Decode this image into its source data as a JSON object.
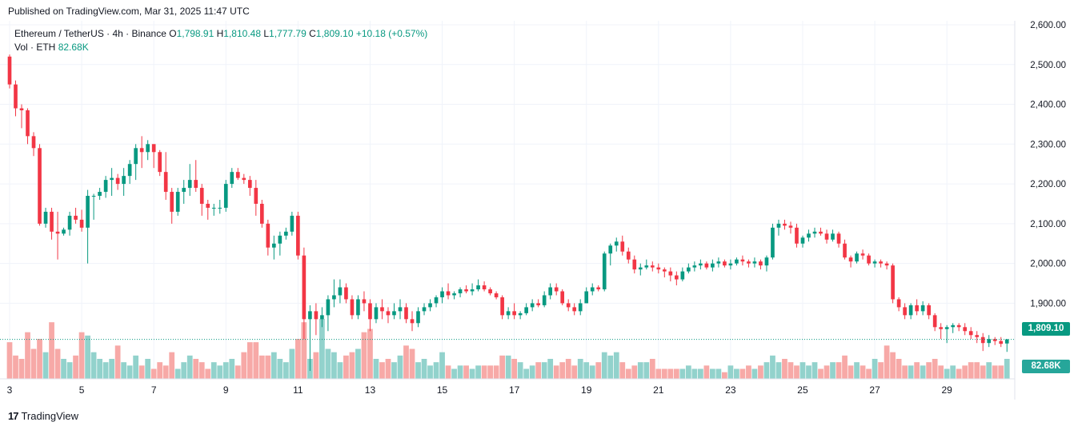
{
  "header": {
    "published": "Published on TradingView.com, Mar 31, 2025 11:47 UTC"
  },
  "legend": {
    "symbol": "Ethereum / TetherUS · 4h · Binance",
    "open_key": "O",
    "open": "1,798.91",
    "high_key": "H",
    "high": "1,810.48",
    "low_key": "L",
    "low": "1,777.79",
    "close_key": "C",
    "close": "1,809.10",
    "change": "+10.18 (+0.57%)",
    "vol_label": "Vol · ETH",
    "vol_value": "82.68K"
  },
  "tags": {
    "last_price": "1,809.10",
    "volume": "82.68K"
  },
  "footer": {
    "brand": "TradingView",
    "mark": "17"
  },
  "colors": {
    "up": "#089981",
    "down": "#f23645",
    "vol_up": "#92d2cc",
    "vol_down": "#f7a9a7",
    "grid": "#f0f3fa"
  },
  "chart_data": {
    "type": "candlestick",
    "title": "Ethereum / TetherUS · 4h · Binance",
    "y_ticks": [
      "2,600.00",
      "2,500.00",
      "2,400.00",
      "2,300.00",
      "2,200.00",
      "2,100.00",
      "2,000.00",
      "1,900.00"
    ],
    "ylim": [
      1710,
      2610
    ],
    "x_ticks": [
      {
        "label": "3",
        "index": 0
      },
      {
        "label": "5",
        "index": 12
      },
      {
        "label": "7",
        "index": 24
      },
      {
        "label": "9",
        "index": 36
      },
      {
        "label": "11",
        "index": 48
      },
      {
        "label": "13",
        "index": 60
      },
      {
        "label": "15",
        "index": 72
      },
      {
        "label": "17",
        "index": 84
      },
      {
        "label": "19",
        "index": 96
      },
      {
        "label": "21",
        "index": 108
      },
      {
        "label": "23",
        "index": 120
      },
      {
        "label": "25",
        "index": 132
      },
      {
        "label": "27",
        "index": 144
      },
      {
        "label": "29",
        "index": 156
      }
    ],
    "last_price": 1809.1,
    "candles": [
      [
        2520,
        2525,
        2440,
        2450,
        55
      ],
      [
        2450,
        2460,
        2370,
        2390,
        35
      ],
      [
        2390,
        2400,
        2340,
        2385,
        30
      ],
      [
        2385,
        2390,
        2300,
        2320,
        70
      ],
      [
        2320,
        2330,
        2270,
        2290,
        45
      ],
      [
        2290,
        2300,
        2095,
        2100,
        60
      ],
      [
        2100,
        2140,
        2090,
        2130,
        40
      ],
      [
        2130,
        2140,
        2060,
        2080,
        85
      ],
      [
        2080,
        2130,
        2010,
        2075,
        45
      ],
      [
        2075,
        2090,
        2070,
        2085,
        30
      ],
      [
        2085,
        2130,
        2070,
        2120,
        25
      ],
      [
        2120,
        2140,
        2100,
        2110,
        35
      ],
      [
        2110,
        2135,
        2080,
        2090,
        70
      ],
      [
        2090,
        2185,
        2000,
        2170,
        65
      ],
      [
        2170,
        2175,
        2110,
        2170,
        40
      ],
      [
        2170,
        2190,
        2160,
        2180,
        30
      ],
      [
        2180,
        2220,
        2165,
        2210,
        25
      ],
      [
        2210,
        2240,
        2170,
        2215,
        30
      ],
      [
        2215,
        2225,
        2185,
        2200,
        50
      ],
      [
        2200,
        2240,
        2170,
        2220,
        25
      ],
      [
        2220,
        2260,
        2200,
        2250,
        20
      ],
      [
        2250,
        2300,
        2210,
        2290,
        35
      ],
      [
        2290,
        2320,
        2240,
        2280,
        20
      ],
      [
        2280,
        2310,
        2260,
        2300,
        30
      ],
      [
        2300,
        2300,
        2240,
        2280,
        15
      ],
      [
        2280,
        2285,
        2220,
        2230,
        25
      ],
      [
        2230,
        2280,
        2160,
        2180,
        20
      ],
      [
        2180,
        2190,
        2100,
        2130,
        40
      ],
      [
        2130,
        2190,
        2120,
        2180,
        15
      ],
      [
        2180,
        2210,
        2150,
        2190,
        25
      ],
      [
        2190,
        2250,
        2170,
        2210,
        35
      ],
      [
        2210,
        2260,
        2180,
        2190,
        30
      ],
      [
        2190,
        2200,
        2120,
        2150,
        25
      ],
      [
        2150,
        2160,
        2110,
        2140,
        15
      ],
      [
        2140,
        2150,
        2120,
        2140,
        25
      ],
      [
        2140,
        2160,
        2125,
        2140,
        20
      ],
      [
        2140,
        2210,
        2130,
        2200,
        25
      ],
      [
        2200,
        2240,
        2190,
        2230,
        30
      ],
      [
        2230,
        2240,
        2210,
        2215,
        20
      ],
      [
        2215,
        2225,
        2200,
        2210,
        40
      ],
      [
        2210,
        2220,
        2170,
        2190,
        55
      ],
      [
        2190,
        2210,
        2120,
        2150,
        55
      ],
      [
        2150,
        2160,
        2090,
        2100,
        35
      ],
      [
        2100,
        2110,
        2020,
        2040,
        35
      ],
      [
        2040,
        2070,
        2010,
        2050,
        40
      ],
      [
        2050,
        2080,
        2020,
        2070,
        30
      ],
      [
        2070,
        2090,
        2060,
        2080,
        25
      ],
      [
        2080,
        2130,
        2070,
        2120,
        45
      ],
      [
        2120,
        2130,
        2010,
        2020,
        60
      ],
      [
        2020,
        2040,
        1810,
        1860,
        85
      ],
      [
        1860,
        1895,
        1730,
        1880,
        30
      ],
      [
        1880,
        1900,
        1820,
        1860,
        40
      ],
      [
        1860,
        1890,
        1840,
        1870,
        90
      ],
      [
        1870,
        1920,
        1830,
        1910,
        45
      ],
      [
        1910,
        1960,
        1890,
        1920,
        40
      ],
      [
        1920,
        1960,
        1900,
        1940,
        25
      ],
      [
        1940,
        1950,
        1900,
        1910,
        35
      ],
      [
        1910,
        1920,
        1860,
        1870,
        40
      ],
      [
        1870,
        1920,
        1860,
        1910,
        45
      ],
      [
        1910,
        1930,
        1880,
        1900,
        70
      ],
      [
        1900,
        1910,
        1830,
        1860,
        75
      ],
      [
        1860,
        1900,
        1850,
        1890,
        30
      ],
      [
        1890,
        1910,
        1860,
        1880,
        25
      ],
      [
        1880,
        1890,
        1850,
        1870,
        30
      ],
      [
        1870,
        1900,
        1860,
        1880,
        25
      ],
      [
        1880,
        1910,
        1860,
        1890,
        35
      ],
      [
        1890,
        1900,
        1850,
        1860,
        50
      ],
      [
        1860,
        1880,
        1830,
        1850,
        45
      ],
      [
        1850,
        1890,
        1840,
        1880,
        25
      ],
      [
        1880,
        1900,
        1870,
        1890,
        30
      ],
      [
        1890,
        1910,
        1880,
        1900,
        20
      ],
      [
        1900,
        1920,
        1890,
        1915,
        25
      ],
      [
        1915,
        1940,
        1900,
        1930,
        40
      ],
      [
        1930,
        1950,
        1910,
        1920,
        20
      ],
      [
        1920,
        1930,
        1910,
        1925,
        15
      ],
      [
        1925,
        1940,
        1915,
        1935,
        20
      ],
      [
        1935,
        1945,
        1925,
        1930,
        20
      ],
      [
        1930,
        1950,
        1920,
        1935,
        15
      ],
      [
        1935,
        1960,
        1930,
        1945,
        20
      ],
      [
        1945,
        1955,
        1930,
        1935,
        20
      ],
      [
        1935,
        1940,
        1920,
        1925,
        20
      ],
      [
        1925,
        1930,
        1910,
        1915,
        20
      ],
      [
        1915,
        1920,
        1860,
        1870,
        35
      ],
      [
        1870,
        1890,
        1860,
        1880,
        35
      ],
      [
        1880,
        1900,
        1860,
        1870,
        30
      ],
      [
        1870,
        1880,
        1860,
        1875,
        25
      ],
      [
        1875,
        1900,
        1870,
        1890,
        15
      ],
      [
        1890,
        1910,
        1880,
        1900,
        20
      ],
      [
        1900,
        1910,
        1890,
        1895,
        25
      ],
      [
        1895,
        1930,
        1890,
        1920,
        25
      ],
      [
        1920,
        1950,
        1910,
        1940,
        30
      ],
      [
        1940,
        1950,
        1920,
        1930,
        20
      ],
      [
        1930,
        1935,
        1895,
        1900,
        25
      ],
      [
        1900,
        1910,
        1880,
        1890,
        30
      ],
      [
        1890,
        1900,
        1870,
        1880,
        20
      ],
      [
        1880,
        1910,
        1870,
        1900,
        30
      ],
      [
        1900,
        1940,
        1900,
        1930,
        25
      ],
      [
        1930,
        1950,
        1920,
        1940,
        20
      ],
      [
        1940,
        1945,
        1930,
        1935,
        25
      ],
      [
        1935,
        2030,
        1930,
        2025,
        40
      ],
      [
        2025,
        2050,
        1995,
        2045,
        35
      ],
      [
        2045,
        2065,
        2030,
        2055,
        40
      ],
      [
        2055,
        2070,
        2020,
        2030,
        25
      ],
      [
        2030,
        2040,
        2000,
        2010,
        15
      ],
      [
        2010,
        2020,
        1975,
        1985,
        20
      ],
      [
        1985,
        2000,
        1970,
        1990,
        25
      ],
      [
        1990,
        2010,
        1985,
        1995,
        25
      ],
      [
        1995,
        2005,
        1980,
        1990,
        30
      ],
      [
        1990,
        2000,
        1975,
        1985,
        15
      ],
      [
        1985,
        1990,
        1965,
        1980,
        15
      ],
      [
        1980,
        1990,
        1955,
        1970,
        15
      ],
      [
        1970,
        1980,
        1945,
        1960,
        15
      ],
      [
        1960,
        1990,
        1955,
        1980,
        15
      ],
      [
        1980,
        2000,
        1975,
        1990,
        20
      ],
      [
        1990,
        2005,
        1980,
        1995,
        15
      ],
      [
        1995,
        2010,
        1985,
        2000,
        15
      ],
      [
        2000,
        2005,
        1985,
        1990,
        20
      ],
      [
        1990,
        2010,
        1980,
        2000,
        15
      ],
      [
        2000,
        2015,
        1990,
        2005,
        15
      ],
      [
        2005,
        2010,
        1990,
        1995,
        10
      ],
      [
        1995,
        2010,
        1985,
        2000,
        20
      ],
      [
        2000,
        2015,
        1995,
        2010,
        15
      ],
      [
        2010,
        2020,
        1995,
        2005,
        15
      ],
      [
        2005,
        2010,
        1990,
        2000,
        20
      ],
      [
        2000,
        2015,
        1990,
        2005,
        15
      ],
      [
        2005,
        2010,
        1985,
        1995,
        20
      ],
      [
        1995,
        2020,
        1980,
        2015,
        25
      ],
      [
        2015,
        2100,
        2010,
        2090,
        35
      ],
      [
        2090,
        2110,
        2070,
        2100,
        25
      ],
      [
        2100,
        2110,
        2085,
        2095,
        30
      ],
      [
        2095,
        2105,
        2075,
        2090,
        25
      ],
      [
        2090,
        2100,
        2040,
        2050,
        20
      ],
      [
        2050,
        2070,
        2040,
        2065,
        25
      ],
      [
        2065,
        2085,
        2055,
        2075,
        20
      ],
      [
        2075,
        2090,
        2065,
        2080,
        25
      ],
      [
        2080,
        2090,
        2070,
        2075,
        15
      ],
      [
        2075,
        2085,
        2050,
        2060,
        20
      ],
      [
        2060,
        2085,
        2055,
        2075,
        25
      ],
      [
        2075,
        2080,
        2040,
        2050,
        25
      ],
      [
        2050,
        2060,
        2010,
        2015,
        35
      ],
      [
        2015,
        2020,
        1990,
        2005,
        20
      ],
      [
        2005,
        2030,
        2000,
        2025,
        25
      ],
      [
        2025,
        2035,
        2010,
        2020,
        20
      ],
      [
        2020,
        2025,
        1995,
        2000,
        15
      ],
      [
        2000,
        2010,
        1990,
        2005,
        30
      ],
      [
        2005,
        2010,
        1990,
        2000,
        25
      ],
      [
        2000,
        2005,
        1985,
        1995,
        50
      ],
      [
        1995,
        2000,
        1900,
        1910,
        40
      ],
      [
        1910,
        1915,
        1880,
        1890,
        30
      ],
      [
        1890,
        1900,
        1860,
        1870,
        20
      ],
      [
        1870,
        1900,
        1860,
        1895,
        20
      ],
      [
        1895,
        1910,
        1870,
        1880,
        25
      ],
      [
        1880,
        1905,
        1870,
        1895,
        20
      ],
      [
        1895,
        1900,
        1860,
        1870,
        25
      ],
      [
        1870,
        1875,
        1830,
        1840,
        30
      ],
      [
        1840,
        1850,
        1810,
        1835,
        20
      ],
      [
        1835,
        1845,
        1800,
        1840,
        15
      ],
      [
        1840,
        1850,
        1825,
        1845,
        20
      ],
      [
        1845,
        1850,
        1830,
        1840,
        15
      ],
      [
        1840,
        1850,
        1820,
        1830,
        20
      ],
      [
        1830,
        1840,
        1810,
        1820,
        25
      ],
      [
        1820,
        1830,
        1800,
        1815,
        25
      ],
      [
        1815,
        1825,
        1780,
        1800,
        20
      ],
      [
        1800,
        1820,
        1790,
        1810,
        25
      ],
      [
        1810,
        1815,
        1795,
        1805,
        20
      ],
      [
        1805,
        1815,
        1790,
        1798,
        20
      ],
      [
        1798.91,
        1810.48,
        1777.79,
        1809.1,
        30
      ]
    ]
  }
}
